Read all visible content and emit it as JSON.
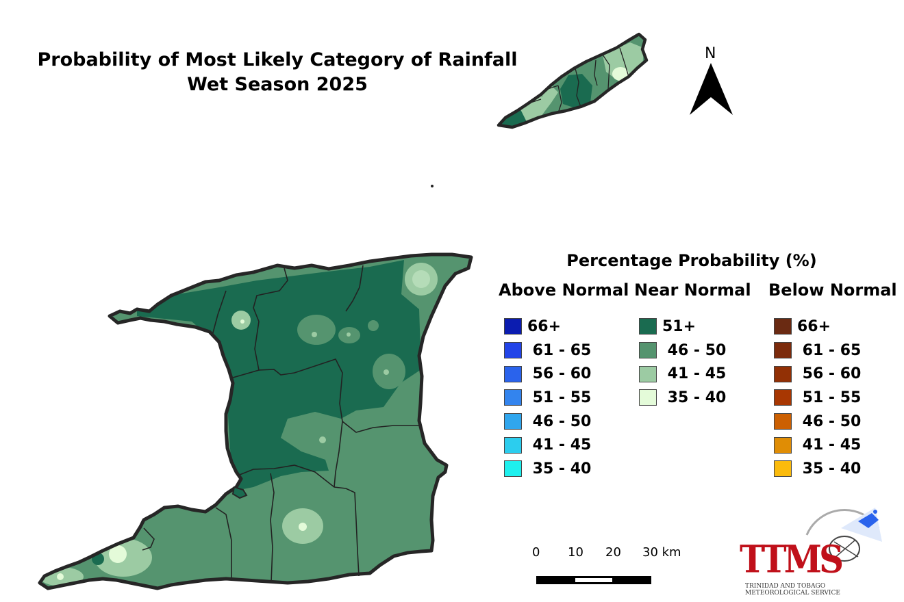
{
  "title_line1": "Probability of Most Likely Category of Rainfall",
  "title_line2": "Wet Season 2025",
  "legend": {
    "title": "Percentage Probability (%)",
    "above": {
      "heading": "Above Normal",
      "items": [
        {
          "label": "66+",
          "color": "#0b1cb0"
        },
        {
          "label": " 61 - 65",
          "color": "#2244e8"
        },
        {
          "label": " 56 - 60",
          "color": "#2a63ec"
        },
        {
          "label": " 51 - 55",
          "color": "#3384ee"
        },
        {
          "label": " 46 - 50",
          "color": "#30a6ee"
        },
        {
          "label": " 41 - 45",
          "color": "#2ccdee"
        },
        {
          "label": " 35 - 40",
          "color": "#1ef0ee"
        }
      ]
    },
    "near": {
      "heading": "Near Normal",
      "items": [
        {
          "label": "51+",
          "color": "#1a6b50"
        },
        {
          "label": " 46 - 50",
          "color": "#55946f"
        },
        {
          "label": " 41 - 45",
          "color": "#9ccba3"
        },
        {
          "label": " 35 - 40",
          "color": "#e4fbd9"
        }
      ]
    },
    "below": {
      "heading": "Below Normal",
      "items": [
        {
          "label": "66+",
          "color": "#6a2a12"
        },
        {
          "label": " 61 - 65",
          "color": "#7c2b0c"
        },
        {
          "label": " 56 - 60",
          "color": "#923005"
        },
        {
          "label": " 51 - 55",
          "color": "#a83702"
        },
        {
          "label": " 46 - 50",
          "color": "#cc6002"
        },
        {
          "label": " 41 - 45",
          "color": "#e08d05"
        },
        {
          "label": " 35 - 40",
          "color": "#fbbb0c"
        }
      ]
    }
  },
  "scale_bar": {
    "labels": [
      "0",
      "10",
      "20",
      "30 km"
    ]
  },
  "north_arrow": {
    "label": "N",
    "icon": "north-arrow-icon"
  },
  "logo": {
    "text": "TTMS",
    "line1": "TRINIDAD AND TOBAGO",
    "line2": "METEOROLOGICAL SERVICE"
  }
}
